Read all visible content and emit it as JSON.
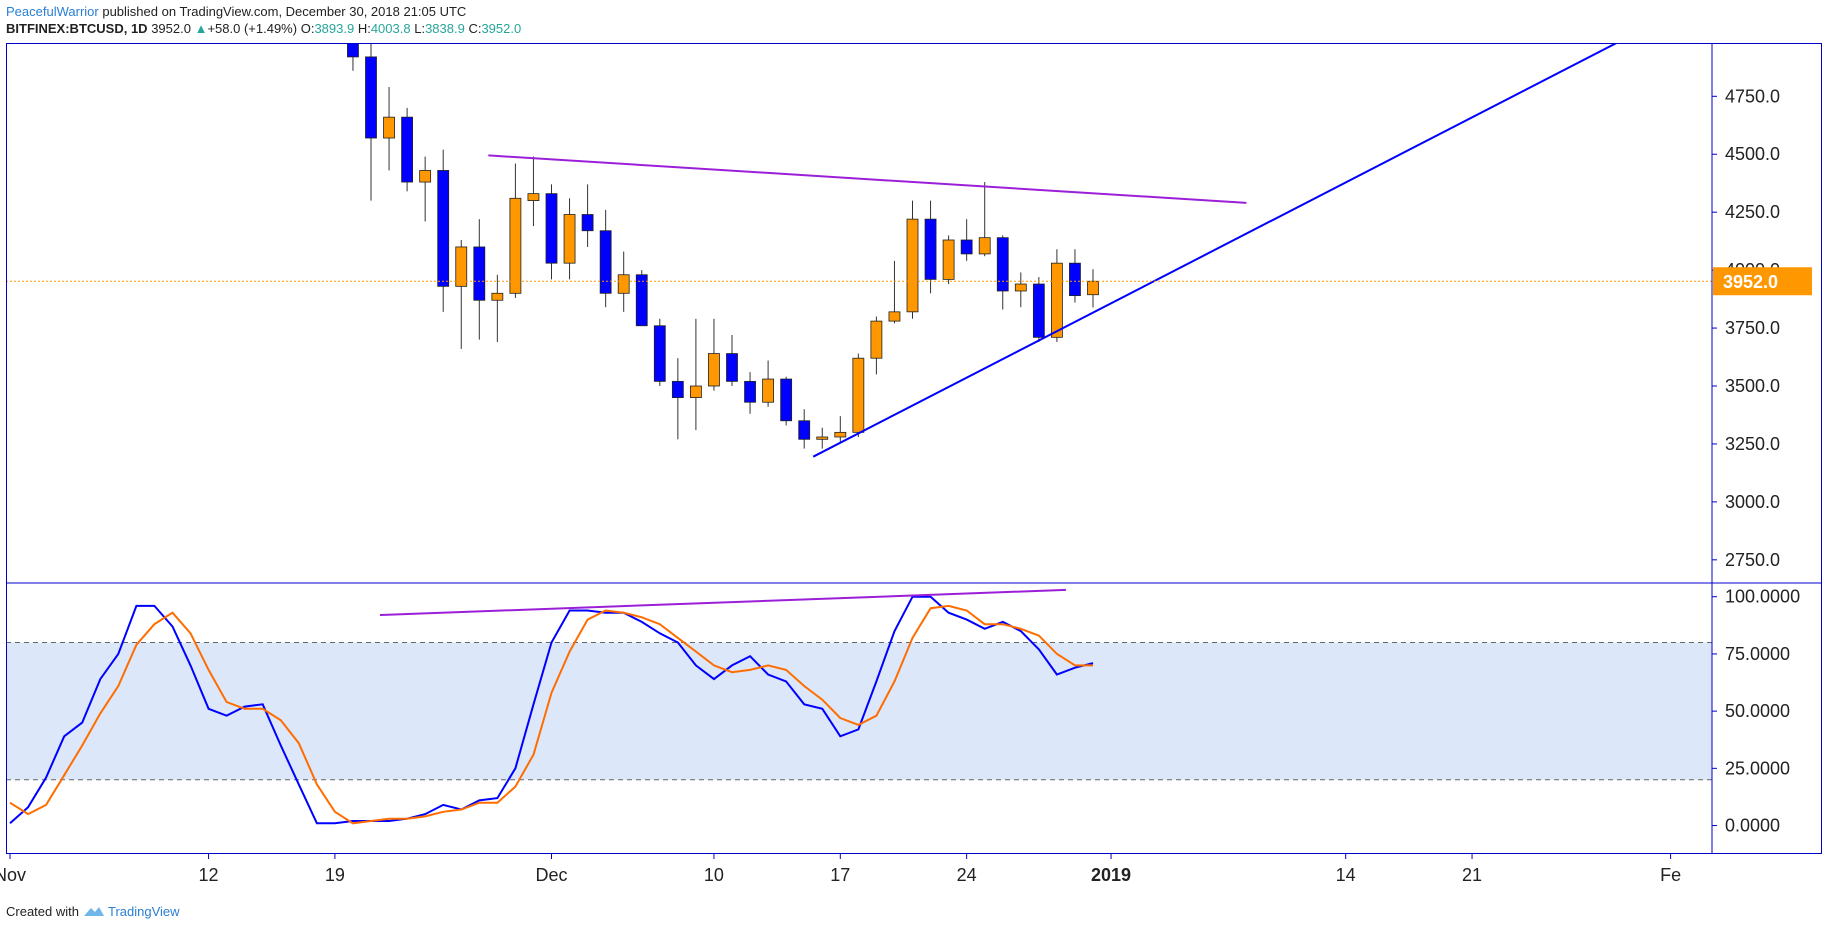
{
  "header": {
    "author": "PeacefulWarrior",
    "published": "published on TradingView.com, December 30, 2018 21:05 UTC",
    "symbol": "BITFINEX:BTCUSD, 1D",
    "last": "3952.0",
    "change_arrow": "▲",
    "change": "+58.0 (+1.49%)",
    "o_label": "O:",
    "o_value": "3893.9",
    "h_label": "H:",
    "h_value": "4003.8",
    "l_label": "L:",
    "l_value": "3838.9",
    "c_label": "C:",
    "c_value": "3952.0"
  },
  "footer": {
    "created_with": "Created with",
    "brand": "TradingView"
  },
  "colors": {
    "up": "#ff9800",
    "down": "#0000ff",
    "k_line": "#0000ff",
    "d_line": "#ff6d00",
    "trend_purple": "#9b1fd8",
    "trend_blue": "#0000ff",
    "band_fill": "#dce8fa",
    "price_label_bg": "#ff9800"
  },
  "price_label": "3952.0",
  "chart_data": [
    {
      "type": "candlestick",
      "title": "",
      "ylim": [
        2650,
        4980
      ],
      "yticks": [
        "2750.0",
        "3000.0",
        "3250.0",
        "3500.0",
        "3750.0",
        "4000.0",
        "4250.0",
        "4500.0",
        "4750.0"
      ],
      "x_ticks": [
        {
          "label": "Nov",
          "index": 0,
          "bold": false
        },
        {
          "label": "12",
          "index": 11,
          "bold": false
        },
        {
          "label": "19",
          "index": 18,
          "bold": false
        },
        {
          "label": "Dec",
          "index": 30,
          "bold": false
        },
        {
          "label": "10",
          "index": 39,
          "bold": false
        },
        {
          "label": "17",
          "index": 46,
          "bold": false
        },
        {
          "label": "24",
          "index": 53,
          "bold": false
        },
        {
          "label": "2019",
          "index": 61,
          "bold": true
        },
        {
          "label": "14",
          "index": 74,
          "bold": false
        },
        {
          "label": "21",
          "index": 81,
          "bold": false
        },
        {
          "label": "Fe",
          "index": 92,
          "bold": false
        }
      ],
      "start_index": 19,
      "candles": [
        {
          "o": 5050,
          "h": 5200,
          "l": 4860,
          "c": 4920
        },
        {
          "o": 4920,
          "h": 4980,
          "l": 4300,
          "c": 4570
        },
        {
          "o": 4570,
          "h": 4790,
          "l": 4430,
          "c": 4660
        },
        {
          "o": 4660,
          "h": 4700,
          "l": 4340,
          "c": 4380
        },
        {
          "o": 4380,
          "h": 4490,
          "l": 4210,
          "c": 4430
        },
        {
          "o": 4430,
          "h": 4520,
          "l": 3820,
          "c": 3930
        },
        {
          "o": 3930,
          "h": 4130,
          "l": 3660,
          "c": 4100
        },
        {
          "o": 4100,
          "h": 4220,
          "l": 3700,
          "c": 3870
        },
        {
          "o": 3870,
          "h": 3980,
          "l": 3690,
          "c": 3900
        },
        {
          "o": 3900,
          "h": 4460,
          "l": 3880,
          "c": 4310
        },
        {
          "o": 4300,
          "h": 4490,
          "l": 4190,
          "c": 4330
        },
        {
          "o": 4330,
          "h": 4370,
          "l": 3960,
          "c": 4030
        },
        {
          "o": 4030,
          "h": 4310,
          "l": 3960,
          "c": 4240
        },
        {
          "o": 4240,
          "h": 4370,
          "l": 4100,
          "c": 4170
        },
        {
          "o": 4170,
          "h": 4260,
          "l": 3840,
          "c": 3900
        },
        {
          "o": 3900,
          "h": 4080,
          "l": 3820,
          "c": 3980
        },
        {
          "o": 3980,
          "h": 4000,
          "l": 3760,
          "c": 3760
        },
        {
          "o": 3760,
          "h": 3790,
          "l": 3500,
          "c": 3520
        },
        {
          "o": 3520,
          "h": 3620,
          "l": 3270,
          "c": 3450
        },
        {
          "o": 3450,
          "h": 3790,
          "l": 3310,
          "c": 3500
        },
        {
          "o": 3500,
          "h": 3790,
          "l": 3480,
          "c": 3640
        },
        {
          "o": 3640,
          "h": 3720,
          "l": 3500,
          "c": 3520
        },
        {
          "o": 3520,
          "h": 3560,
          "l": 3380,
          "c": 3430
        },
        {
          "o": 3430,
          "h": 3610,
          "l": 3410,
          "c": 3530
        },
        {
          "o": 3530,
          "h": 3540,
          "l": 3330,
          "c": 3350
        },
        {
          "o": 3350,
          "h": 3400,
          "l": 3230,
          "c": 3270
        },
        {
          "o": 3270,
          "h": 3320,
          "l": 3230,
          "c": 3280
        },
        {
          "o": 3280,
          "h": 3370,
          "l": 3260,
          "c": 3300
        },
        {
          "o": 3300,
          "h": 3640,
          "l": 3280,
          "c": 3620
        },
        {
          "o": 3620,
          "h": 3800,
          "l": 3550,
          "c": 3780
        },
        {
          "o": 3780,
          "h": 4040,
          "l": 3770,
          "c": 3820
        },
        {
          "o": 3820,
          "h": 4300,
          "l": 3790,
          "c": 4220
        },
        {
          "o": 4220,
          "h": 4300,
          "l": 3900,
          "c": 3960
        },
        {
          "o": 3960,
          "h": 4150,
          "l": 3940,
          "c": 4130
        },
        {
          "o": 4130,
          "h": 4220,
          "l": 4040,
          "c": 4070
        },
        {
          "o": 4070,
          "h": 4380,
          "l": 4060,
          "c": 4140
        },
        {
          "o": 4140,
          "h": 4150,
          "l": 3830,
          "c": 3910
        },
        {
          "o": 3910,
          "h": 3990,
          "l": 3840,
          "c": 3940
        },
        {
          "o": 3940,
          "h": 3970,
          "l": 3690,
          "c": 3710
        },
        {
          "o": 3710,
          "h": 4090,
          "l": 3690,
          "c": 4030
        },
        {
          "o": 4030,
          "h": 4090,
          "l": 3860,
          "c": 3890
        },
        {
          "o": 3893.9,
          "h": 4003.8,
          "l": 3838.9,
          "c": 3952.0
        }
      ],
      "trendlines": [
        {
          "name": "resistance",
          "color": "purple",
          "from": {
            "index": 26.5,
            "value": 4495
          },
          "to": {
            "index": 68.5,
            "value": 4290
          }
        },
        {
          "name": "support",
          "color": "blue",
          "from": {
            "index": 44.5,
            "value": 3195
          },
          "to": {
            "index": 89.5,
            "value": 5000
          }
        }
      ],
      "last_price": 3952.0
    },
    {
      "type": "line",
      "title": "",
      "ylim": [
        -12,
        106
      ],
      "yticks": [
        "0.0000",
        "25.0000",
        "50.0000",
        "75.0000",
        "100.0000"
      ],
      "band": [
        20,
        80
      ],
      "series": [
        {
          "key": "k",
          "color": "blue",
          "values": [
            1,
            8,
            21,
            39,
            45,
            64,
            75,
            96,
            96,
            87,
            70,
            51,
            48,
            52,
            53,
            35,
            18,
            1,
            1,
            2,
            2,
            2,
            3,
            5,
            9,
            7,
            11,
            12,
            25,
            53,
            80,
            94,
            94,
            93,
            93,
            89,
            84,
            80,
            70,
            64,
            70,
            74,
            66,
            63,
            53,
            51,
            39,
            42,
            63,
            85,
            100,
            100,
            93,
            90,
            86,
            89,
            85,
            77,
            66,
            69,
            71
          ]
        },
        {
          "key": "d",
          "color": "orange",
          "values": [
            10,
            5,
            9,
            22,
            35,
            49,
            61,
            79,
            88,
            93,
            84,
            68,
            54,
            51,
            51,
            46,
            36,
            18,
            6,
            1,
            2,
            3,
            3,
            4,
            6,
            7,
            10,
            10,
            17,
            31,
            58,
            76,
            90,
            94,
            93,
            91,
            88,
            82,
            76,
            70,
            67,
            68,
            70,
            68,
            61,
            55,
            47,
            44,
            48,
            63,
            82,
            95,
            96,
            94,
            88,
            88,
            86,
            83,
            75,
            70,
            70
          ]
        }
      ],
      "trendlines": [
        {
          "name": "stoch-divergence",
          "color": "purple",
          "from": {
            "index": 20.5,
            "value": 92
          },
          "to": {
            "index": 58.5,
            "value": 103
          }
        }
      ]
    }
  ]
}
